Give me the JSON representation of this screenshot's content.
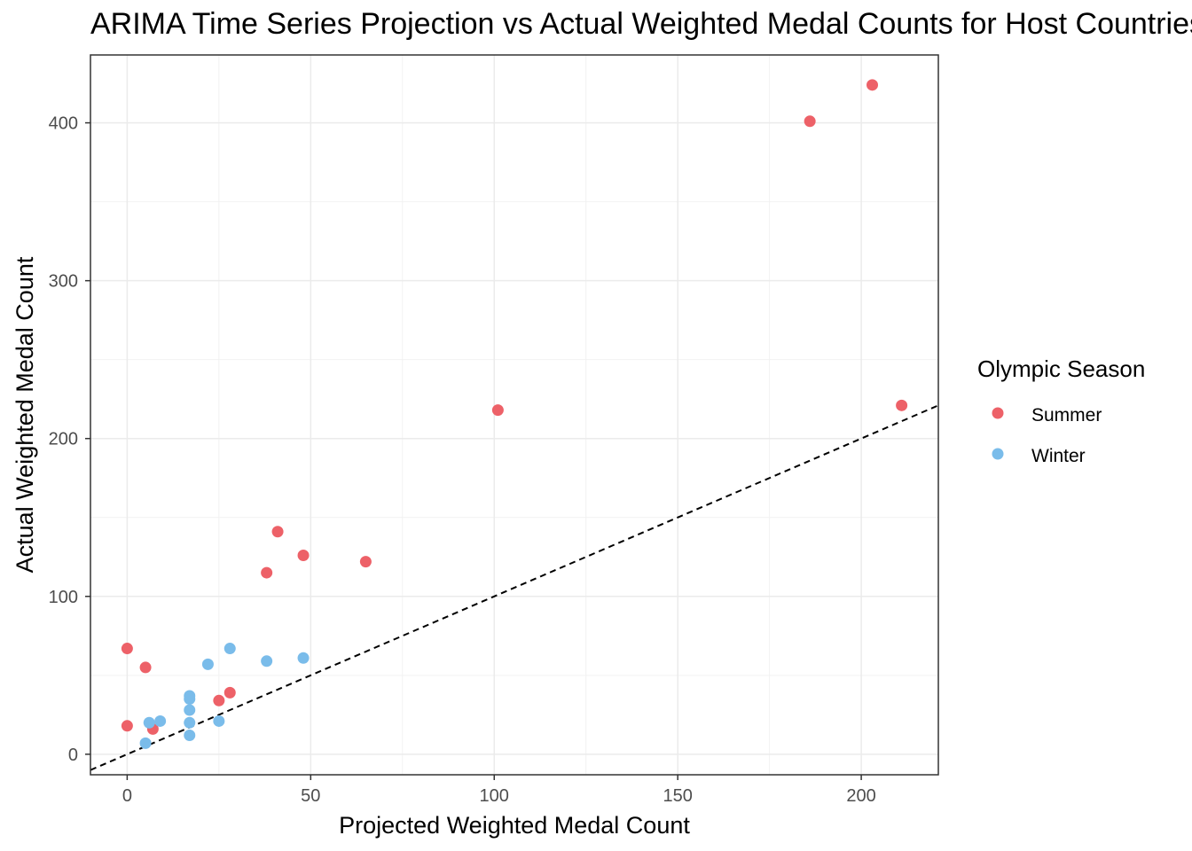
{
  "chart_data": {
    "type": "scatter",
    "title": "ARIMA Time Series Projection vs Actual Weighted Medal Counts for Host Countries",
    "xlabel": "Projected Weighted Medal Count",
    "ylabel": "Actual Weighted Medal Count",
    "xlim": [
      -10,
      221
    ],
    "ylim": [
      -13,
      443
    ],
    "x_ticks": [
      0,
      50,
      100,
      150,
      200
    ],
    "y_ticks": [
      0,
      100,
      200,
      300,
      400
    ],
    "x_tick_labels": [
      "0",
      "50",
      "100",
      "150",
      "200"
    ],
    "y_tick_labels": [
      "0",
      "100",
      "200",
      "300",
      "400"
    ],
    "grid": true,
    "reference_line": {
      "type": "identity",
      "style": "dashed",
      "color": "#000000"
    },
    "legend": {
      "title": "Olympic Season",
      "position": "right"
    },
    "series": [
      {
        "name": "Summer",
        "color": "#ed6168",
        "points": [
          {
            "x": 0,
            "y": 67
          },
          {
            "x": 0,
            "y": 18
          },
          {
            "x": 5,
            "y": 55
          },
          {
            "x": 7,
            "y": 16
          },
          {
            "x": 25,
            "y": 34
          },
          {
            "x": 28,
            "y": 39
          },
          {
            "x": 38,
            "y": 115
          },
          {
            "x": 41,
            "y": 141
          },
          {
            "x": 48,
            "y": 126
          },
          {
            "x": 65,
            "y": 122
          },
          {
            "x": 101,
            "y": 218
          },
          {
            "x": 186,
            "y": 401
          },
          {
            "x": 203,
            "y": 424
          },
          {
            "x": 211,
            "y": 221
          }
        ]
      },
      {
        "name": "Winter",
        "color": "#7abcea",
        "points": [
          {
            "x": 5,
            "y": 7
          },
          {
            "x": 6,
            "y": 20
          },
          {
            "x": 9,
            "y": 21
          },
          {
            "x": 17,
            "y": 12
          },
          {
            "x": 17,
            "y": 20
          },
          {
            "x": 17,
            "y": 28
          },
          {
            "x": 17,
            "y": 35
          },
          {
            "x": 17,
            "y": 37
          },
          {
            "x": 22,
            "y": 57
          },
          {
            "x": 25,
            "y": 21
          },
          {
            "x": 28,
            "y": 67
          },
          {
            "x": 38,
            "y": 59
          },
          {
            "x": 48,
            "y": 61
          }
        ]
      }
    ]
  }
}
